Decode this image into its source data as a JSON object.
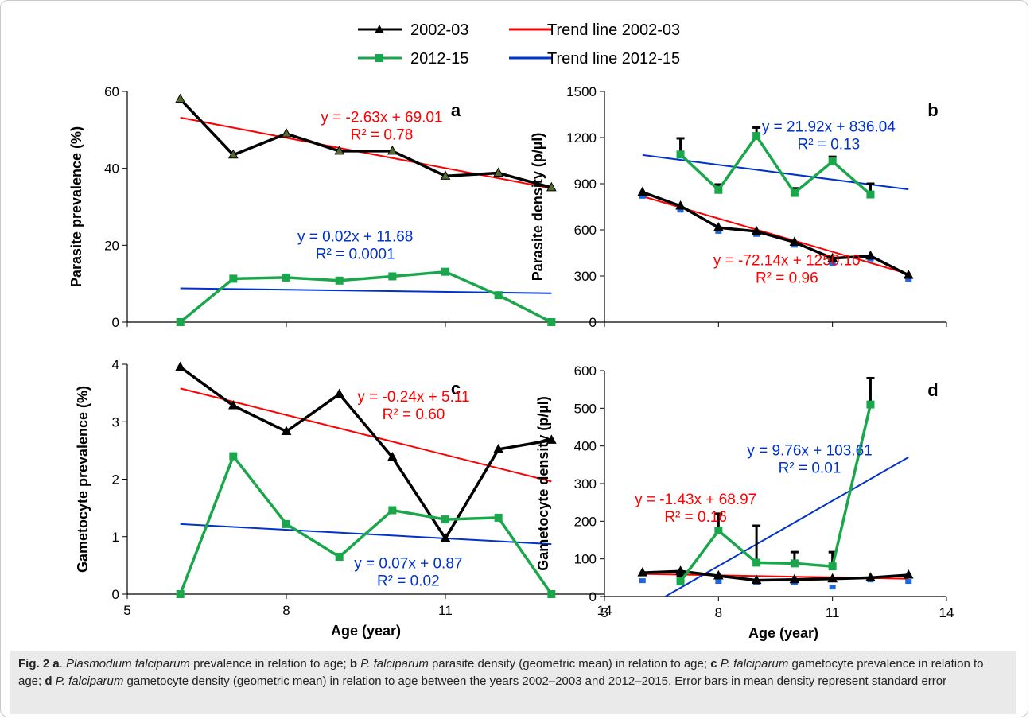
{
  "figure": {
    "legend": [
      {
        "label": "2002-03",
        "color": "#000000",
        "marker": "triangle"
      },
      {
        "label": "2012-15",
        "color": "#1aa64a",
        "marker": "square"
      },
      {
        "label": "Trend line 2002-03",
        "color": "#ff0000",
        "marker": "none"
      },
      {
        "label": "Trend line 2012-15",
        "color": "#0033cc",
        "marker": "none"
      }
    ],
    "caption": {
      "label": "Fig. 2",
      "parts": [
        {
          "b": "a"
        },
        {
          "t": ". "
        },
        {
          "i": "Plasmodium falciparum"
        },
        {
          "t": " prevalence in relation to age; "
        },
        {
          "b": "b"
        },
        {
          "t": " "
        },
        {
          "i": "P. falciparum"
        },
        {
          "t": " parasite density (geometric mean) in relation to age; "
        },
        {
          "b": "c"
        },
        {
          "t": " "
        },
        {
          "i": "P. falciparum"
        },
        {
          "t": " gametocyte prevalence in relation to age; "
        },
        {
          "b": "d"
        },
        {
          "t": " "
        },
        {
          "i": "P. falciparum"
        },
        {
          "t": " gametocyte density (geometric mean) in relation to age between the years 2002–2003 and 2012–2015. Error bars in mean density represent standard error"
        }
      ]
    }
  },
  "chart_data": [
    {
      "type": "line",
      "panel": "a",
      "xlabel": "",
      "ylabel": "Parasite prevalence (%)",
      "xlim": [
        5,
        14
      ],
      "ylim": [
        0,
        60
      ],
      "yticks": [
        0,
        20,
        40,
        60
      ],
      "xticks": [],
      "series": [
        {
          "name": "2002-03",
          "x": [
            6,
            7,
            8,
            9,
            10,
            11,
            12,
            13
          ],
          "values": [
            58,
            43.5,
            49,
            44.5,
            44.5,
            38,
            38.8,
            35
          ]
        },
        {
          "name": "2012-15",
          "x": [
            6,
            7,
            8,
            9,
            10,
            11,
            12,
            13
          ],
          "values": [
            0,
            11.3,
            11.6,
            10.8,
            11.9,
            13.1,
            7,
            0
          ]
        }
      ],
      "trend_lines": [
        {
          "name": "Trend line 2002-03",
          "x": [
            6,
            13
          ],
          "values": [
            53.2,
            34.8
          ]
        },
        {
          "name": "Trend line 2012-15",
          "x": [
            6,
            13
          ],
          "values": [
            8.8,
            7.5
          ]
        }
      ],
      "annotations": [
        {
          "line1": "y = -2.63x + 69.01",
          "line2": "R² = 0.78",
          "color": "#ff0000",
          "x": 9.8,
          "y": 52
        },
        {
          "line1": "y = 0.02x + 11.68",
          "line2": "R² = 0.0001",
          "color": "#0033cc",
          "x": 9.3,
          "y": 21
        }
      ]
    },
    {
      "type": "line",
      "panel": "b",
      "xlabel": "",
      "ylabel": "Parasite density (p/µl)",
      "xlim": [
        5,
        14
      ],
      "ylim": [
        0,
        1500
      ],
      "yticks": [
        0,
        300,
        600,
        900,
        1200,
        1500
      ],
      "xticks": [],
      "series": [
        {
          "name": "2002-03",
          "x": [
            6,
            7,
            8,
            9,
            10,
            11,
            12,
            13
          ],
          "values": [
            845,
            755,
            615,
            590,
            520,
            415,
            430,
            305
          ],
          "err_low": [
            818,
            728,
            590,
            570,
            500,
            378,
            410,
            278
          ]
        },
        {
          "name": "2012-15",
          "x": [
            7,
            8,
            9,
            10,
            11,
            12
          ],
          "values": [
            1090,
            860,
            1210,
            840,
            1045,
            830
          ],
          "err_up": [
            1195,
            895,
            1265,
            870,
            1075,
            900
          ]
        }
      ],
      "trend_lines": [
        {
          "name": "Trend line 2002-03",
          "x": [
            6,
            13
          ],
          "values": [
            818,
            313
          ]
        },
        {
          "name": "Trend line 2012-15",
          "x": [
            6,
            13
          ],
          "values": [
            1087,
            863
          ]
        }
      ],
      "annotations": [
        {
          "line1": "y = 21.92x + 836.04",
          "line2": "R² = 0.13",
          "color": "#0033cc",
          "x": 10.9,
          "y": 1240
        },
        {
          "line1": "y = -72.14x + 1250.10",
          "line2": "R² = 0.96",
          "color": "#ff0000",
          "x": 9.8,
          "y": 370
        }
      ]
    },
    {
      "type": "line",
      "panel": "c",
      "xlabel": "Age (year)",
      "ylabel": "Gametocyte prevalence (%)",
      "xlim": [
        5,
        14
      ],
      "ylim": [
        0,
        4
      ],
      "yticks": [
        0,
        1,
        2,
        3,
        4
      ],
      "xticks": [
        5,
        8,
        11,
        14
      ],
      "series": [
        {
          "name": "2002-03",
          "x": [
            6,
            7,
            8,
            9,
            10,
            11,
            12,
            13
          ],
          "values": [
            3.95,
            3.28,
            2.83,
            3.48,
            2.38,
            0.97,
            2.52,
            2.68
          ]
        },
        {
          "name": "2012-15",
          "x": [
            6,
            7,
            8,
            9,
            10,
            11,
            12,
            13
          ],
          "values": [
            0,
            2.4,
            1.22,
            0.65,
            1.46,
            1.3,
            1.33,
            0
          ]
        }
      ],
      "trend_lines": [
        {
          "name": "Trend line 2002-03",
          "x": [
            6,
            13
          ],
          "values": [
            3.58,
            1.96
          ]
        },
        {
          "name": "Trend line 2012-15",
          "x": [
            6,
            13
          ],
          "values": [
            1.22,
            0.87
          ]
        }
      ],
      "annotations": [
        {
          "line1": "y = -0.24x + 5.11",
          "line2": "R² = 0.60",
          "color": "#ff0000",
          "x": 10.4,
          "y": 3.35
        },
        {
          "line1": "y = 0.07x + 0.87",
          "line2": "R² = 0.02",
          "color": "#0033cc",
          "x": 10.3,
          "y": 0.45
        }
      ]
    },
    {
      "type": "line",
      "panel": "d",
      "xlabel": "Age (year)",
      "ylabel": "Gametocyte density (p/µl)",
      "xlim": [
        5,
        14
      ],
      "ylim": [
        0,
        600
      ],
      "yticks": [
        0,
        100,
        200,
        300,
        400,
        500,
        600
      ],
      "xticks": [
        5,
        8,
        11,
        14
      ],
      "series": [
        {
          "name": "2002-03",
          "x": [
            6,
            7,
            8,
            9,
            10,
            11,
            12,
            13
          ],
          "values": [
            63,
            67,
            55,
            43,
            45,
            47,
            50,
            57
          ],
          "err_low": [
            42,
            42,
            40,
            38,
            36,
            25,
            44,
            40
          ]
        },
        {
          "name": "2012-15",
          "x": [
            7,
            8,
            9,
            10,
            11,
            12
          ],
          "values": [
            40,
            175,
            90,
            88,
            80,
            510
          ],
          "err_up": [
            55,
            220,
            188,
            118,
            118,
            580
          ]
        }
      ],
      "trend_lines": [
        {
          "name": "Trend line 2002-03",
          "x": [
            6,
            13
          ],
          "values": [
            60,
            47
          ]
        },
        {
          "name": "Trend line 2012-15",
          "x": [
            6.6,
            13
          ],
          "values": [
            0,
            370
          ]
        }
      ],
      "annotations": [
        {
          "line1": "y = 9.76x + 103.61",
          "line2": "R² = 0.01",
          "color": "#0033cc",
          "x": 10.4,
          "y": 375
        },
        {
          "line1": "y = -1.43x + 68.97",
          "line2": "R² = 0.16",
          "color": "#ff0000",
          "x": 7.4,
          "y": 245
        }
      ]
    }
  ]
}
